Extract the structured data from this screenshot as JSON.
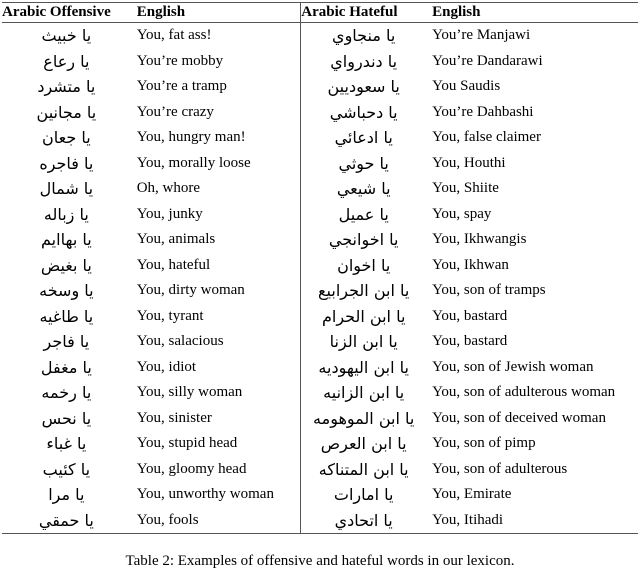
{
  "table": {
    "headers": [
      "Arabic Offensive",
      "English",
      "Arabic Hateful",
      "English"
    ],
    "rows": [
      {
        "ar_off": "يا خبيث",
        "en_off": "You, fat ass!",
        "ar_hate": "يا منجاوي",
        "en_hate": "You’re Manjawi"
      },
      {
        "ar_off": "يا رعاع",
        "en_off": "You’re mobby",
        "ar_hate": "يا دندرواي",
        "en_hate": "You’re Dandarawi"
      },
      {
        "ar_off": "يا متشرد",
        "en_off": "You’re a tramp",
        "ar_hate": "يا سعوديين",
        "en_hate": "You Saudis"
      },
      {
        "ar_off": "يا مجانين",
        "en_off": "You’re crazy",
        "ar_hate": "يا دحباشي",
        "en_hate": "You’re Dahbashi"
      },
      {
        "ar_off": "يا جعان",
        "en_off": "You, hungry man!",
        "ar_hate": "يا ادعائي",
        "en_hate": "You, false claimer"
      },
      {
        "ar_off": "يا فاجره",
        "en_off": "You, morally loose",
        "ar_hate": "يا حوثي",
        "en_hate": "You, Houthi"
      },
      {
        "ar_off": "يا شمال",
        "en_off": "Oh, whore",
        "ar_hate": "يا شيعي",
        "en_hate": "You, Shiite"
      },
      {
        "ar_off": "يا زباله",
        "en_off": "You, junky",
        "ar_hate": "يا عميل",
        "en_hate": "You, spay"
      },
      {
        "ar_off": "يا بهاايم",
        "en_off": "You, animals",
        "ar_hate": "يا اخوانجي",
        "en_hate": "You, Ikhwangis"
      },
      {
        "ar_off": "يا بغيض",
        "en_off": "You, hateful",
        "ar_hate": "يا اخوان",
        "en_hate": "You, Ikhwan"
      },
      {
        "ar_off": "يا وسخه",
        "en_off": "You, dirty woman",
        "ar_hate": "يا ابن الجرابيع",
        "en_hate": "You, son of tramps"
      },
      {
        "ar_off": "يا طاغيه",
        "en_off": "You, tyrant",
        "ar_hate": "يا ابن الحرام",
        "en_hate": "You, bastard"
      },
      {
        "ar_off": "يا فاجر",
        "en_off": "You, salacious",
        "ar_hate": "يا ابن الزنا",
        "en_hate": "You, bastard"
      },
      {
        "ar_off": "يا مغفل",
        "en_off": "You, idiot",
        "ar_hate": "يا ابن اليهوديه",
        "en_hate": "You, son of Jewish woman"
      },
      {
        "ar_off": "يا رخمه",
        "en_off": "You, silly woman",
        "ar_hate": "يا ابن الزانيه",
        "en_hate": "You, son of adulterous woman"
      },
      {
        "ar_off": "يا نحس",
        "en_off": "You, sinister",
        "ar_hate": "يا ابن الموهومه",
        "en_hate": "You, son of deceived woman"
      },
      {
        "ar_off": "يا غباء",
        "en_off": "You, stupid head",
        "ar_hate": "يا ابن العرص",
        "en_hate": "You, son of pimp"
      },
      {
        "ar_off": "يا كئيب",
        "en_off": "You, gloomy head",
        "ar_hate": "يا ابن المتناكه",
        "en_hate": "You, son of adulterous"
      },
      {
        "ar_off": "يا مرا",
        "en_off": "You, unworthy woman",
        "ar_hate": "يا امارات",
        "en_hate": "You, Emirate"
      },
      {
        "ar_off": "يا حمقي",
        "en_off": "You, fools",
        "ar_hate": "يا اتحادي",
        "en_hate": "You, Itihadi"
      }
    ]
  },
  "caption": "Table 2: Examples of offensive and hateful words in our lexicon."
}
